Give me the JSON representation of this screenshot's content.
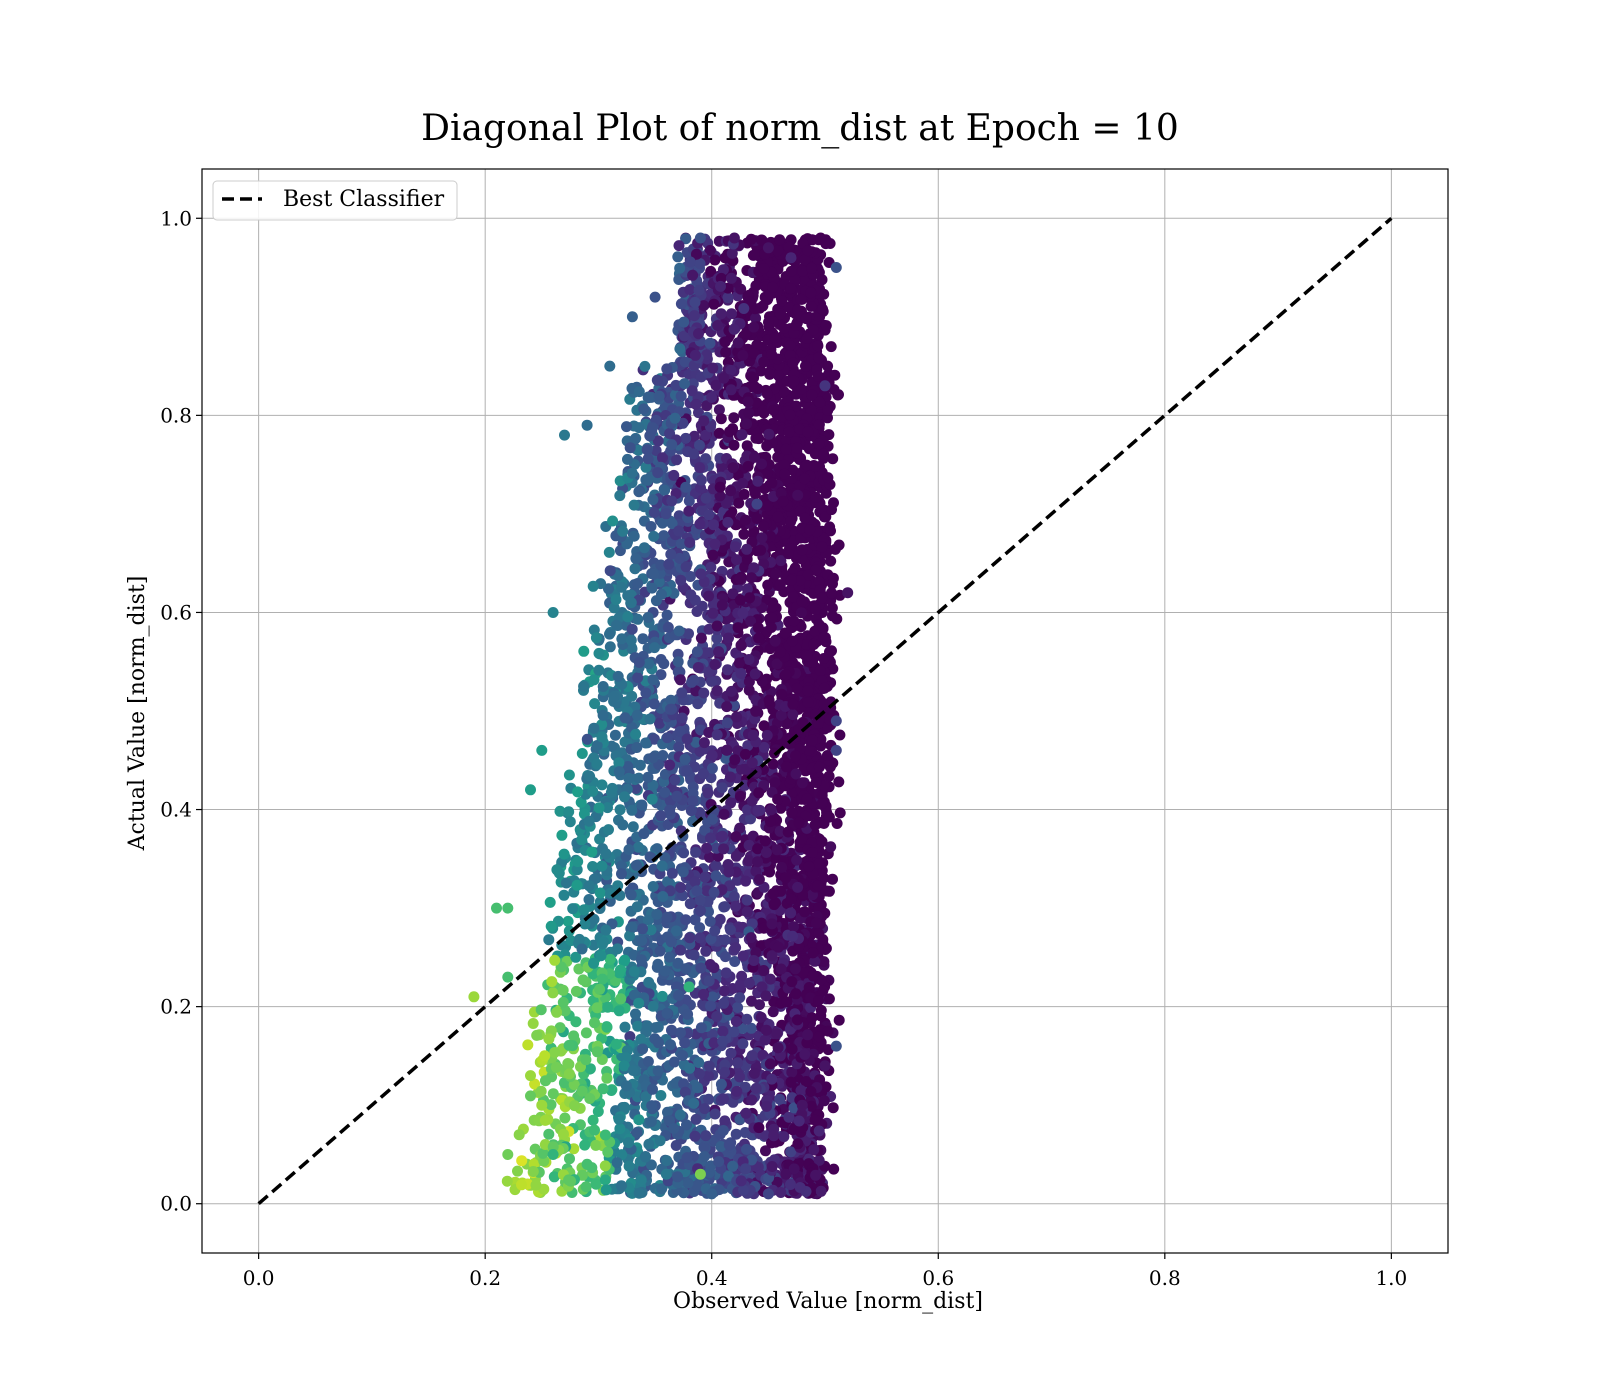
{
  "chart_data": {
    "type": "scatter",
    "title": "Diagonal Plot of norm_dist at Epoch = 10",
    "xlabel": "Observed Value [norm_dist]",
    "ylabel": "Actual Value [norm_dist]",
    "xlim": [
      -0.05,
      1.05
    ],
    "ylim": [
      -0.05,
      1.05
    ],
    "xticks": [
      0.0,
      0.2,
      0.4,
      0.6,
      0.8,
      1.0
    ],
    "yticks": [
      0.0,
      0.2,
      0.4,
      0.6,
      0.8,
      1.0
    ],
    "xtick_labels": [
      "0.0",
      "0.2",
      "0.4",
      "0.6",
      "0.8",
      "1.0"
    ],
    "ytick_labels": [
      "0.0",
      "0.2",
      "0.4",
      "0.6",
      "0.8",
      "1.0"
    ],
    "grid": true,
    "legend_position": "top-left",
    "colormap": "viridis",
    "series": [
      {
        "name": "Best Classifier",
        "style": "dashed",
        "color": "#000000",
        "x": [
          0.0,
          1.0
        ],
        "y": [
          0.0,
          1.0
        ]
      }
    ],
    "scatter_points": [
      [
        0.19,
        0.21,
        0.85
      ],
      [
        0.22,
        0.3,
        0.7
      ],
      [
        0.23,
        0.07,
        0.82
      ],
      [
        0.22,
        0.05,
        0.78
      ],
      [
        0.24,
        0.42,
        0.55
      ],
      [
        0.25,
        0.46,
        0.55
      ],
      [
        0.26,
        0.6,
        0.45
      ],
      [
        0.27,
        0.78,
        0.4
      ],
      [
        0.29,
        0.79,
        0.35
      ],
      [
        0.31,
        0.85,
        0.35
      ],
      [
        0.33,
        0.9,
        0.3
      ],
      [
        0.35,
        0.92,
        0.25
      ],
      [
        0.39,
        0.98,
        0.25
      ],
      [
        0.42,
        0.98,
        0.05
      ],
      [
        0.45,
        0.97,
        0.05
      ],
      [
        0.47,
        0.96,
        0.1
      ],
      [
        0.51,
        0.95,
        0.25
      ],
      [
        0.5,
        0.83,
        0.15
      ],
      [
        0.52,
        0.62,
        0.05
      ],
      [
        0.51,
        0.49,
        0.2
      ],
      [
        0.51,
        0.46,
        0.2
      ],
      [
        0.51,
        0.16,
        0.25
      ],
      [
        0.5,
        0.14,
        0.05
      ],
      [
        0.45,
        0.01,
        0.2
      ],
      [
        0.4,
        0.01,
        0.3
      ],
      [
        0.39,
        0.03,
        0.8
      ],
      [
        0.36,
        0.03,
        0.4
      ],
      [
        0.29,
        0.04,
        0.7
      ],
      [
        0.26,
        0.05,
        0.65
      ],
      [
        0.25,
        0.1,
        0.85
      ],
      [
        0.24,
        0.13,
        0.85
      ],
      [
        0.21,
        0.3,
        0.7
      ],
      [
        0.22,
        0.23,
        0.7
      ],
      [
        0.38,
        0.22,
        0.65
      ],
      [
        0.44,
        0.71,
        0.2
      ],
      [
        0.48,
        0.1,
        0.05
      ]
    ],
    "cloud_density_note": null
  }
}
